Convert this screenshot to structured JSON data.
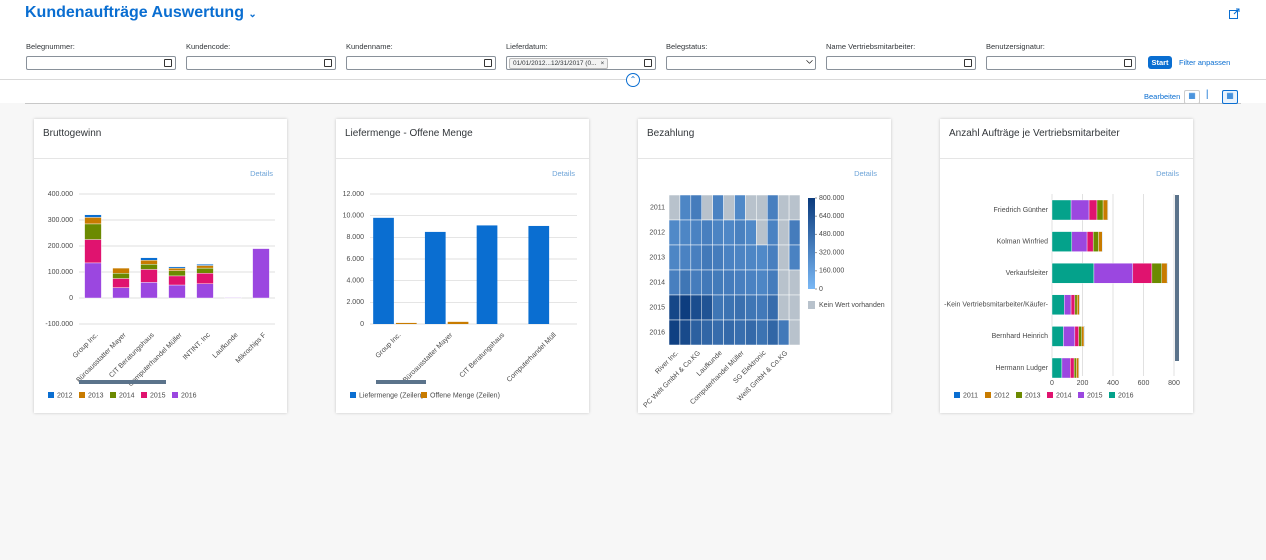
{
  "header": {
    "title": "Kundenaufträge Auswertung"
  },
  "filters": [
    {
      "label": "Belegnummer:"
    },
    {
      "label": "Kundencode:"
    },
    {
      "label": "Kundenname:"
    },
    {
      "label": "Lieferdatum:",
      "token": "01/01/2012...12/31/2017 (0..."
    },
    {
      "label": "Belegstatus:"
    },
    {
      "label": "Name Vertriebsmitarbeiter:"
    },
    {
      "label": "Benutzersignatur:"
    }
  ],
  "buttons": {
    "start": "Start",
    "adapt": "Filter anpassen",
    "edit": "Bearbeiten"
  },
  "cards": [
    {
      "title": "Bruttogewinn",
      "details": "Details",
      "chart_data": {
        "type": "bar",
        "stacked": true,
        "categories": [
          "Group Inc.",
          "Büroausstatter Mayer",
          "CIT Beratungshaus",
          "Computerhandel Müller",
          "INTINT. Inc",
          "Laufkunde",
          "Mikrochips F"
        ],
        "series": [
          {
            "name": "2012",
            "color": "#0a6ed1",
            "values": [
              10000,
              0,
              10000,
              5000,
              5000,
              0,
              0
            ]
          },
          {
            "name": "2013",
            "color": "#c87b00",
            "values": [
              25000,
              20000,
              15000,
              10000,
              10000,
              0,
              0
            ]
          },
          {
            "name": "2014",
            "color": "#6c8a00",
            "values": [
              60000,
              20000,
              20000,
              20000,
              20000,
              0,
              0
            ]
          },
          {
            "name": "2015",
            "color": "#e0136f",
            "values": [
              90000,
              35000,
              50000,
              35000,
              40000,
              0,
              0
            ]
          },
          {
            "name": "2016",
            "color": "#9b47e0",
            "values": [
              135000,
              40000,
              60000,
              50000,
              55000,
              2000,
              190000
            ]
          }
        ],
        "ylim": [
          -100000,
          400000
        ],
        "yticks": [
          {
            "value": -100000,
            "label": "-100.000"
          },
          0,
          {
            "value": 100000,
            "label": "100.000"
          },
          {
            "value": 200000,
            "label": "200.000"
          },
          {
            "value": 300000,
            "label": "300.000"
          },
          {
            "value": 400000,
            "label": "400.000"
          }
        ],
        "grid": true
      }
    },
    {
      "title": "Liefermenge - Offene Menge",
      "details": "Details",
      "chart_data": {
        "type": "bar",
        "stacked": false,
        "categories": [
          "Group Inc.",
          "Büroausstatter Mayer",
          "CIT Beratungshaus",
          "Computerhandel Müll"
        ],
        "series": [
          {
            "name": "Liefermenge (Zeilen)",
            "color": "#0a6ed1",
            "values": [
              9800,
              8500,
              9100,
              9050
            ]
          },
          {
            "name": "Offene Menge (Zeilen)",
            "color": "#c87b00",
            "values": [
              100,
              200,
              0,
              0
            ]
          }
        ],
        "ylim": [
          0,
          12000
        ],
        "yticks": [
          0,
          {
            "value": 2000,
            "label": "2.000"
          },
          {
            "value": 4000,
            "label": "4.000"
          },
          {
            "value": 6000,
            "label": "6.000"
          },
          {
            "value": 8000,
            "label": "8.000"
          },
          {
            "value": 10000,
            "label": "10.000"
          },
          {
            "value": 12000,
            "label": "12.000"
          }
        ],
        "grid": true
      }
    },
    {
      "title": "Bezahlung",
      "details": "Details",
      "chart_data": {
        "type": "heatmap",
        "x": [
          "River Inc.",
          null,
          "PC Welt GmbH & Co.KG",
          null,
          "Laufkunde",
          null,
          "Computerhandel Müller",
          null,
          "SG Elektronic",
          null,
          "Weiß GmbH & Co.KG",
          null
        ],
        "y": [
          "2011",
          "2012",
          "2013",
          "2014",
          "2015",
          "2016"
        ],
        "values": [
          [
            null,
            320000,
            380000,
            null,
            340000,
            null,
            300000,
            null,
            null,
            360000,
            null,
            null
          ],
          [
            300000,
            320000,
            340000,
            360000,
            330000,
            310000,
            350000,
            300000,
            null,
            340000,
            null,
            380000
          ],
          [
            320000,
            340000,
            360000,
            400000,
            380000,
            340000,
            330000,
            320000,
            300000,
            360000,
            null,
            340000
          ],
          [
            360000,
            420000,
            380000,
            400000,
            390000,
            380000,
            360000,
            340000,
            320000,
            380000,
            null,
            null
          ],
          [
            720000,
            780000,
            680000,
            640000,
            420000,
            440000,
            460000,
            420000,
            400000,
            480000,
            null,
            null
          ],
          [
            760000,
            700000,
            560000,
            520000,
            480000,
            500000,
            470000,
            500000,
            440000,
            520000,
            400000,
            null
          ]
        ],
        "colors": [
          "#7ab8f5",
          "#0a3a7c"
        ],
        "null_color": "#b8c2cc",
        "clim": [
          0,
          800000
        ],
        "cticks": [
          {
            "value": 800000,
            "label": "800.000"
          },
          {
            "value": 640000,
            "label": "640.000"
          },
          {
            "value": 480000,
            "label": "480.000"
          },
          {
            "value": 320000,
            "label": "320.000"
          },
          {
            "value": 160000,
            "label": "160.000"
          },
          0
        ],
        "null_label": "Kein Wert vorhanden"
      }
    },
    {
      "title": "Anzahl Aufträge je Vertriebsmitarbeiter",
      "details": "Details",
      "chart_data": {
        "type": "hbar",
        "stacked": true,
        "categories": [
          "Friedrich Günther",
          "Kolman Winfried",
          "Verkaufsleiter",
          "-Kein Vertriebsmitarbeiter/Käufer-",
          "Bernhard Heinrich",
          "Hermann Ludger"
        ],
        "series": [
          {
            "name": "2011",
            "color": "#0a6ed1",
            "values": [
              3,
              3,
              3,
              3,
              3,
              3
            ]
          },
          {
            "name": "2012",
            "color": "#c87b00",
            "values": [
              30,
              25,
              35,
              15,
              15,
              15
            ]
          },
          {
            "name": "2013",
            "color": "#6c8a00",
            "values": [
              40,
              35,
              65,
              15,
              20,
              15
            ]
          },
          {
            "name": "2014",
            "color": "#e0136f",
            "values": [
              52,
              40,
              125,
              25,
              25,
              25
            ]
          },
          {
            "name": "2015",
            "color": "#9b47e0",
            "values": [
              118,
              100,
              255,
              45,
              75,
              55
            ]
          },
          {
            "name": "2016",
            "color": "#04a28b",
            "values": [
              125,
              130,
              275,
              80,
              75,
              65
            ]
          }
        ],
        "xlim": [
          0,
          800
        ],
        "xticks": [
          0,
          200,
          400,
          600,
          800
        ],
        "grid": true
      }
    }
  ]
}
